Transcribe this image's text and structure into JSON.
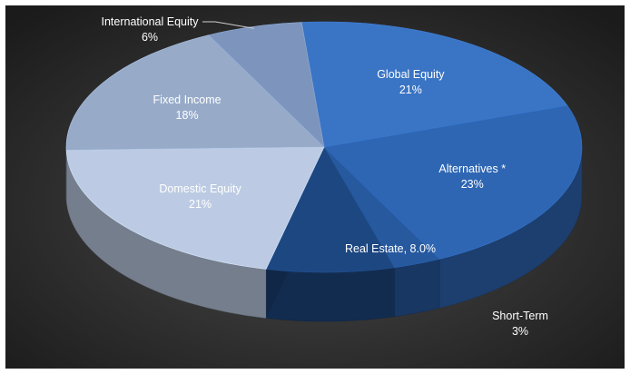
{
  "chart_data": {
    "type": "pie",
    "style": "3d",
    "background": "#2a2a2a",
    "slices": [
      {
        "label": "Global Equity",
        "value": 21,
        "display": "21%",
        "color": "#3a74c4"
      },
      {
        "label": "Alternatives *",
        "value": 23,
        "display": "23%",
        "color": "#2e66b3"
      },
      {
        "label": "Short-Term",
        "value": 3,
        "display": "3%",
        "color": "#27599f"
      },
      {
        "label": "Real Estate, 8.0%",
        "value": 8,
        "display": "",
        "color": "#1d4781"
      },
      {
        "label": "Domestic Equity",
        "value": 21,
        "display": "21%",
        "color": "#bccbe3"
      },
      {
        "label": "Fixed Income",
        "value": 18,
        "display": "18%",
        "color": "#97abc9"
      },
      {
        "label": "International Equity",
        "value": 6,
        "display": "6%",
        "color": "#7d95bc"
      }
    ]
  }
}
